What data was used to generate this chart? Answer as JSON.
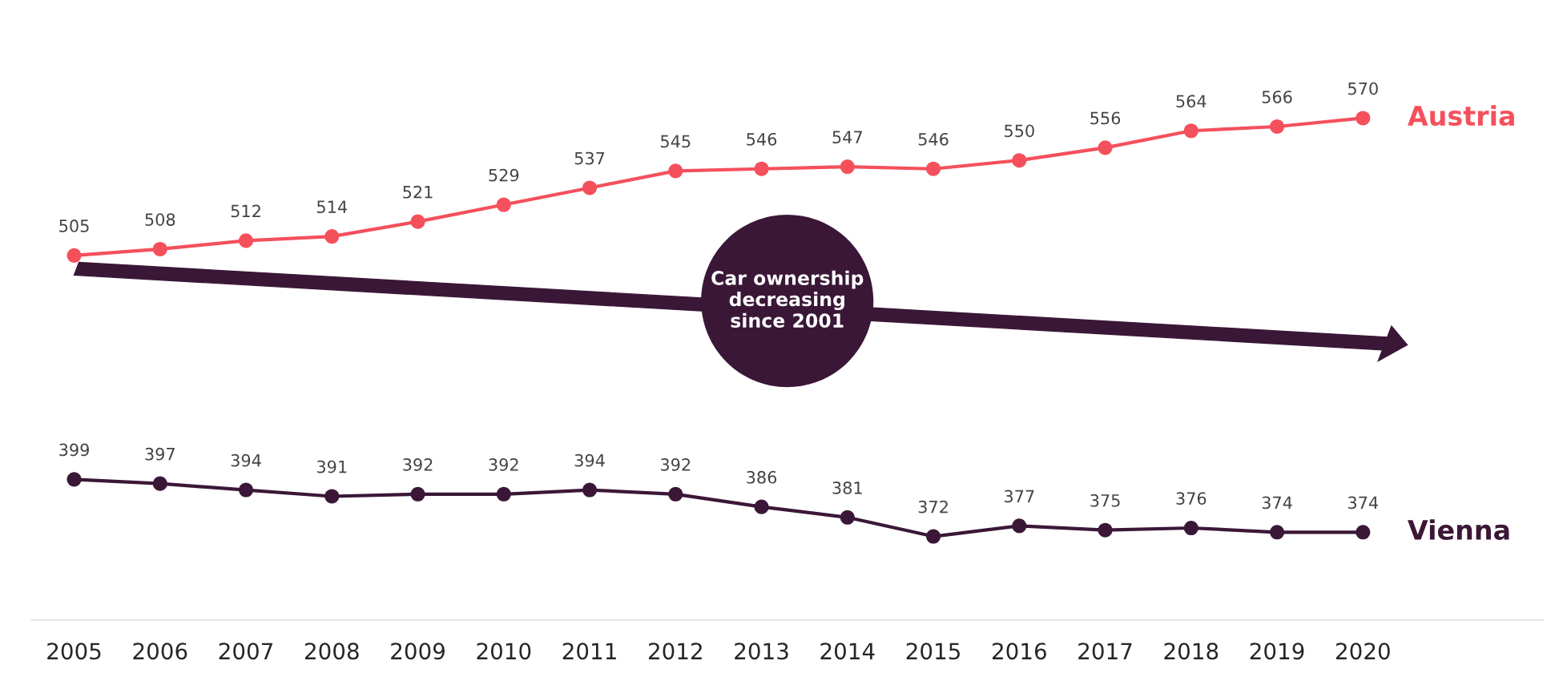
{
  "chart_data": {
    "type": "line",
    "categories": [
      "2005",
      "2006",
      "2007",
      "2008",
      "2009",
      "2010",
      "2011",
      "2012",
      "2013",
      "2014",
      "2015",
      "2016",
      "2017",
      "2018",
      "2019",
      "2020"
    ],
    "series": [
      {
        "name": "Austria",
        "color": "#f4505c",
        "values": [
          505,
          508,
          512,
          514,
          521,
          529,
          537,
          545,
          546,
          547,
          546,
          550,
          556,
          564,
          566,
          570
        ]
      },
      {
        "name": "Vienna",
        "color": "#3b1737",
        "values": [
          399,
          397,
          394,
          391,
          392,
          392,
          394,
          392,
          386,
          381,
          372,
          377,
          375,
          376,
          374,
          374
        ]
      }
    ],
    "annotations": [
      "Car ownership decreasing since 2001"
    ],
    "data_labels": true,
    "marker": "circle",
    "line_style": "solid",
    "legend": false,
    "grid": false,
    "tick_labels": "x"
  }
}
